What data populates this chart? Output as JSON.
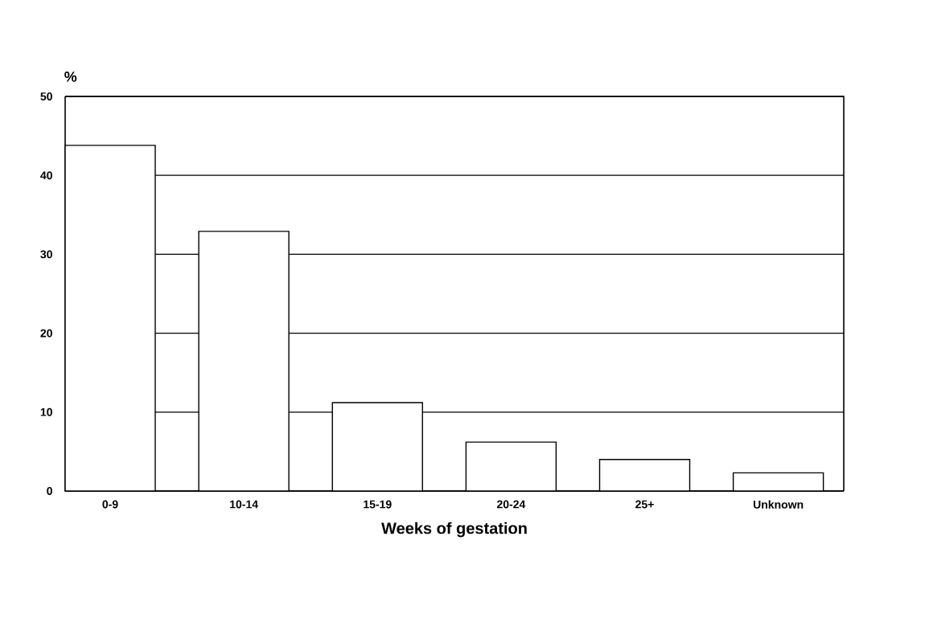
{
  "chart_data": {
    "type": "bar",
    "ylabel": "%",
    "xlabel": "Weeks of gestation",
    "categories": [
      "0-9",
      "10-14",
      "15-19",
      "20-24",
      "25+",
      "Unknown"
    ],
    "values": [
      43.8,
      32.9,
      11.2,
      6.2,
      4.0,
      2.3
    ],
    "color": "#ffffff",
    "ylim": [
      0,
      50
    ],
    "yticks": [
      0,
      10,
      20,
      30,
      40,
      50
    ],
    "grid": "y"
  }
}
